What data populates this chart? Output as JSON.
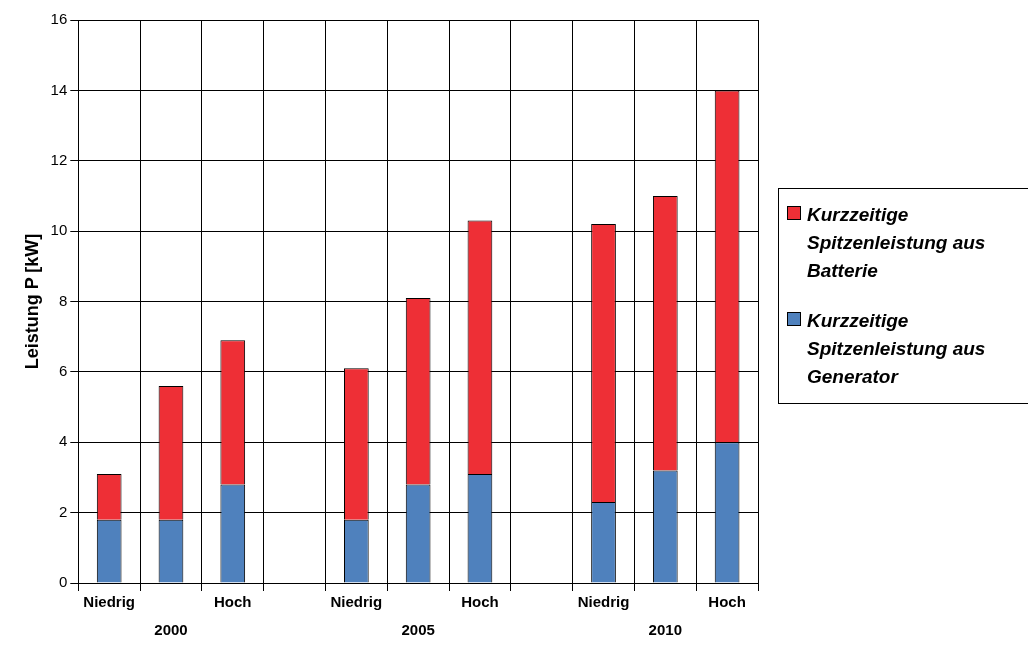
{
  "chart_data": {
    "type": "bar",
    "stacked": true,
    "ylabel": "Leistung P [kW]",
    "categories": [
      "Niedrig",
      null,
      "Hoch",
      null,
      "Niedrig",
      null,
      "Hoch",
      null,
      "Niedrig",
      null,
      "Hoch"
    ],
    "series": [
      {
        "name": "Kurzzeitige Spitzenleistung aus Generator",
        "color": "#4f81bd",
        "values": [
          1.8,
          1.8,
          2.8,
          null,
          1.8,
          2.8,
          3.1,
          null,
          2.3,
          3.2,
          4.0
        ]
      },
      {
        "name": "Kurzzeitige Spitzenleistung aus Batterie",
        "color": "#ee2f36",
        "values": [
          1.3,
          3.8,
          4.1,
          null,
          4.3,
          5.3,
          7.2,
          null,
          7.9,
          7.8,
          10.0
        ]
      }
    ],
    "ylim": [
      0,
      16
    ],
    "yticks": [
      0,
      2,
      4,
      6,
      8,
      10,
      12,
      14,
      16
    ],
    "grid": true,
    "legend": "right",
    "annotations": [
      "2000",
      "2005",
      "2010"
    ]
  }
}
